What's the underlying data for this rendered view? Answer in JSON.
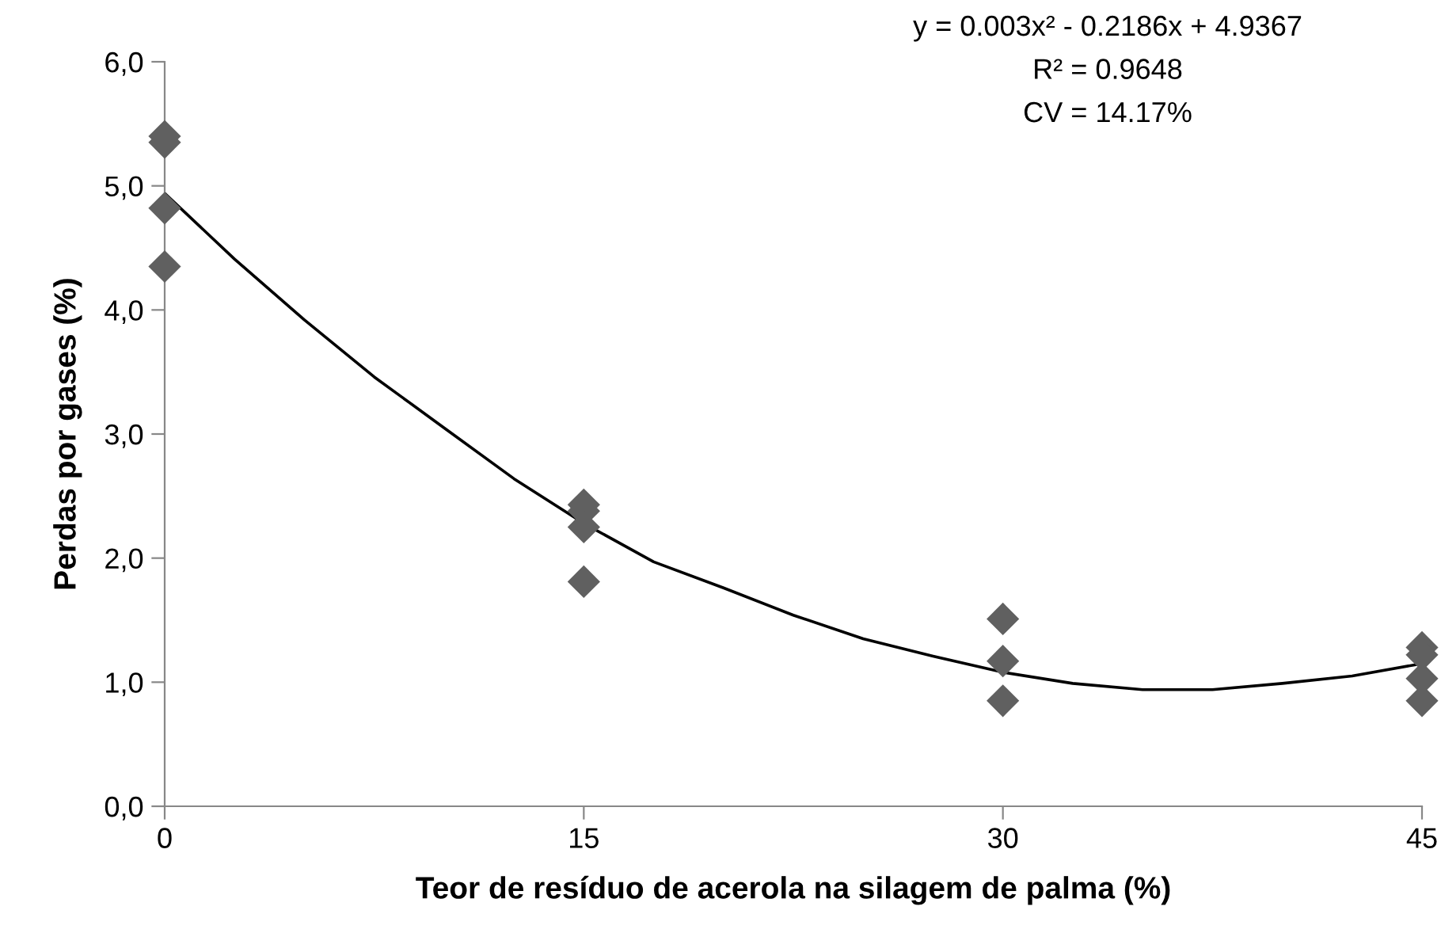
{
  "chart_data": {
    "type": "scatter",
    "xlabel": "Teor de resíduo de acerola na silagem de palma (%)",
    "ylabel": "Perdas por gases (%)",
    "annotations": [
      "y = 0.003x² - 0.2186x + 4.9367",
      "R² = 0.9648",
      "CV = 14.17%"
    ],
    "xlim": [
      0,
      45
    ],
    "xticks": [
      0,
      15,
      30,
      45
    ],
    "ylim": [
      0,
      6
    ],
    "yticks": [
      {
        "value": 0,
        "label": "0,0"
      },
      {
        "value": 1,
        "label": "1,0"
      },
      {
        "value": 2,
        "label": "2,0"
      },
      {
        "value": 3,
        "label": "3,0"
      },
      {
        "value": 4,
        "label": "4,0"
      },
      {
        "value": 5,
        "label": "5,0"
      },
      {
        "value": 6,
        "label": "6,0"
      }
    ],
    "grid": false,
    "legend": false,
    "series": [
      {
        "color": "#606060",
        "marker": "diamond",
        "x": [
          0,
          0,
          0,
          0,
          15,
          15,
          15,
          15,
          30,
          30,
          30,
          45,
          45,
          45,
          45
        ],
        "values": [
          5.4,
          5.35,
          4.82,
          4.35,
          2.43,
          2.38,
          2.25,
          1.81,
          1.51,
          1.17,
          0.85,
          1.28,
          1.22,
          1.03,
          0.85
        ]
      },
      {
        "type": "line",
        "color": "#000000",
        "marker": "none",
        "line_style": "solid",
        "x": [
          0,
          2.5,
          5,
          7.5,
          10,
          12.5,
          15,
          17.5,
          20,
          22.5,
          25,
          27.5,
          30,
          32.5,
          35,
          37.5,
          40,
          42.5,
          45
        ],
        "values": [
          4.94,
          4.41,
          3.92,
          3.46,
          3.05,
          2.64,
          2.28,
          1.97,
          1.76,
          1.54,
          1.35,
          1.21,
          1.08,
          0.99,
          0.94,
          0.94,
          0.99,
          1.05,
          1.15
        ]
      }
    ]
  }
}
